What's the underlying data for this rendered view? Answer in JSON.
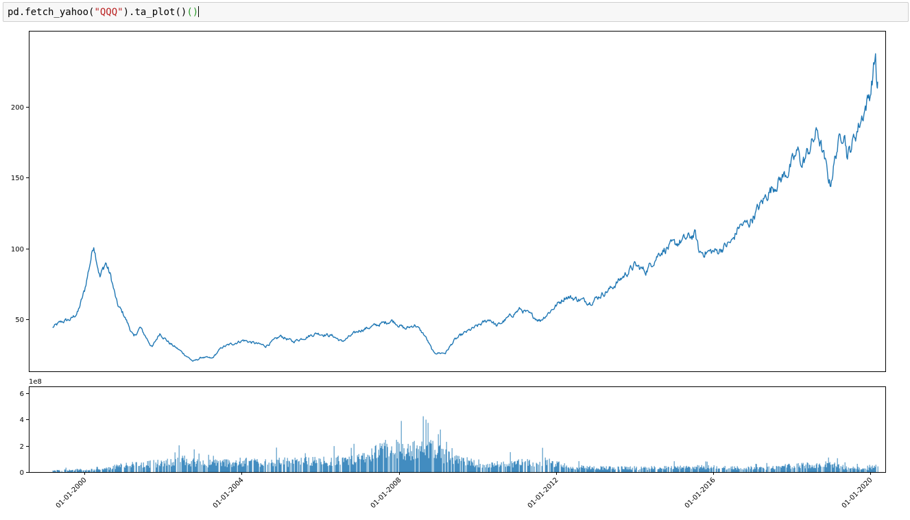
{
  "cell": {
    "code_prefix": "pd.fetch_yahoo(",
    "code_string": "\"QQQ\"",
    "code_mid": ").ta_plot()",
    "code_parens": "()"
  },
  "chart_data": [
    {
      "type": "line",
      "panel": "price",
      "title": "",
      "xlabel": "",
      "ylabel": "",
      "x_type": "date",
      "xlim": [
        "1998-08-01",
        "2020-05-20"
      ],
      "ylim": [
        13,
        254
      ],
      "yticks": [
        50,
        100,
        150,
        200
      ],
      "ytick_labels": [
        "50",
        "100",
        "150",
        "200"
      ],
      "grid": false,
      "legend": "none",
      "color": "#1f77b4",
      "series": [
        {
          "x": [
            "1999-03-10",
            "1999-06-01",
            "1999-09-01",
            "1999-11-01",
            "2000-01-01",
            "2000-03-27",
            "2000-05-24",
            "2000-07-15",
            "2000-09-01",
            "2000-11-01",
            "2001-01-01",
            "2001-04-04",
            "2001-06-01",
            "2001-09-21",
            "2001-12-01",
            "2002-03-01",
            "2002-06-01",
            "2002-10-08",
            "2003-01-01",
            "2003-04-01",
            "2003-07-01",
            "2004-01-15",
            "2004-08-12",
            "2005-01-01",
            "2005-04-20",
            "2005-12-01",
            "2006-05-01",
            "2006-07-20",
            "2007-01-01",
            "2007-10-31",
            "2008-03-01",
            "2008-06-01",
            "2008-09-01",
            "2008-11-20",
            "2009-03-09",
            "2009-06-01",
            "2009-09-01",
            "2010-01-01",
            "2010-04-26",
            "2010-07-01",
            "2011-02-01",
            "2011-08-08",
            "2012-04-01",
            "2012-11-15",
            "2013-06-01",
            "2014-01-01",
            "2014-04-15",
            "2014-09-01",
            "2015-07-20",
            "2015-08-24",
            "2016-02-11",
            "2016-06-27",
            "2016-09-01",
            "2016-12-01",
            "2017-06-01",
            "2017-12-01",
            "2018-03-12",
            "2018-04-01",
            "2018-08-29",
            "2018-12-24",
            "2019-03-01",
            "2019-05-03",
            "2019-06-03",
            "2019-10-01",
            "2020-01-01",
            "2020-02-19",
            "2020-03-05",
            "2020-03-10"
          ],
          "y": [
            44,
            48,
            50,
            55,
            70,
            103,
            80,
            90,
            80,
            60,
            53,
            37,
            44,
            30,
            40,
            33,
            28,
            20,
            23,
            22,
            30,
            35,
            31,
            38,
            34,
            40,
            38,
            34,
            42,
            49,
            43,
            46,
            38,
            26,
            26,
            35,
            40,
            45,
            50,
            45,
            57,
            49,
            66,
            62,
            72,
            88,
            84,
            98,
            110,
            97,
            98,
            105,
            116,
            118,
            140,
            155,
            170,
            158,
            183,
            145,
            172,
            185,
            165,
            190,
            210,
            237,
            212,
            218
          ]
        }
      ]
    },
    {
      "type": "bar",
      "panel": "volume",
      "title": "",
      "xlabel": "",
      "ylabel": "",
      "x_type": "date",
      "xlim": [
        "1998-08-01",
        "2020-05-20"
      ],
      "ylim": [
        0,
        650000000
      ],
      "yticks": [
        0,
        200000000,
        400000000,
        600000000
      ],
      "ytick_labels": [
        "0",
        "2",
        "4",
        "6"
      ],
      "offset_label": "1e8",
      "xticks": [
        "2000-01-01",
        "2004-01-01",
        "2008-01-01",
        "2012-01-01",
        "2016-01-01",
        "2020-01-01"
      ],
      "xtick_labels": [
        "01-01-2000",
        "01-01-2004",
        "01-01-2008",
        "01-01-2012",
        "01-01-2016",
        "01-01-2020"
      ],
      "grid": false,
      "legend": "none",
      "color": "#1f77b4",
      "envelope": {
        "x": [
          "1999-03-10",
          "1999-09-01",
          "2000-06-01",
          "2000-12-01",
          "2001-06-01",
          "2002-01-01",
          "2002-07-01",
          "2003-01-01",
          "2004-01-01",
          "2005-01-01",
          "2006-01-01",
          "2007-01-01",
          "2007-10-15",
          "2008-03-01",
          "2008-10-10",
          "2009-06-01",
          "2010-06-01",
          "2011-08-08",
          "2012-06-01",
          "2013-06-01",
          "2014-06-01",
          "2015-08-24",
          "2016-06-27",
          "2017-06-01",
          "2018-02-08",
          "2018-12-24",
          "2019-06-01",
          "2019-12-01",
          "2020-03-10"
        ],
        "y": [
          15000000,
          25000000,
          25000000,
          70000000,
          85000000,
          100000000,
          130000000,
          95000000,
          110000000,
          110000000,
          120000000,
          140000000,
          270000000,
          230000000,
          260000000,
          130000000,
          80000000,
          120000000,
          55000000,
          45000000,
          45000000,
          55000000,
          50000000,
          45000000,
          75000000,
          85000000,
          45000000,
          35000000,
          70000000
        ]
      }
    }
  ]
}
